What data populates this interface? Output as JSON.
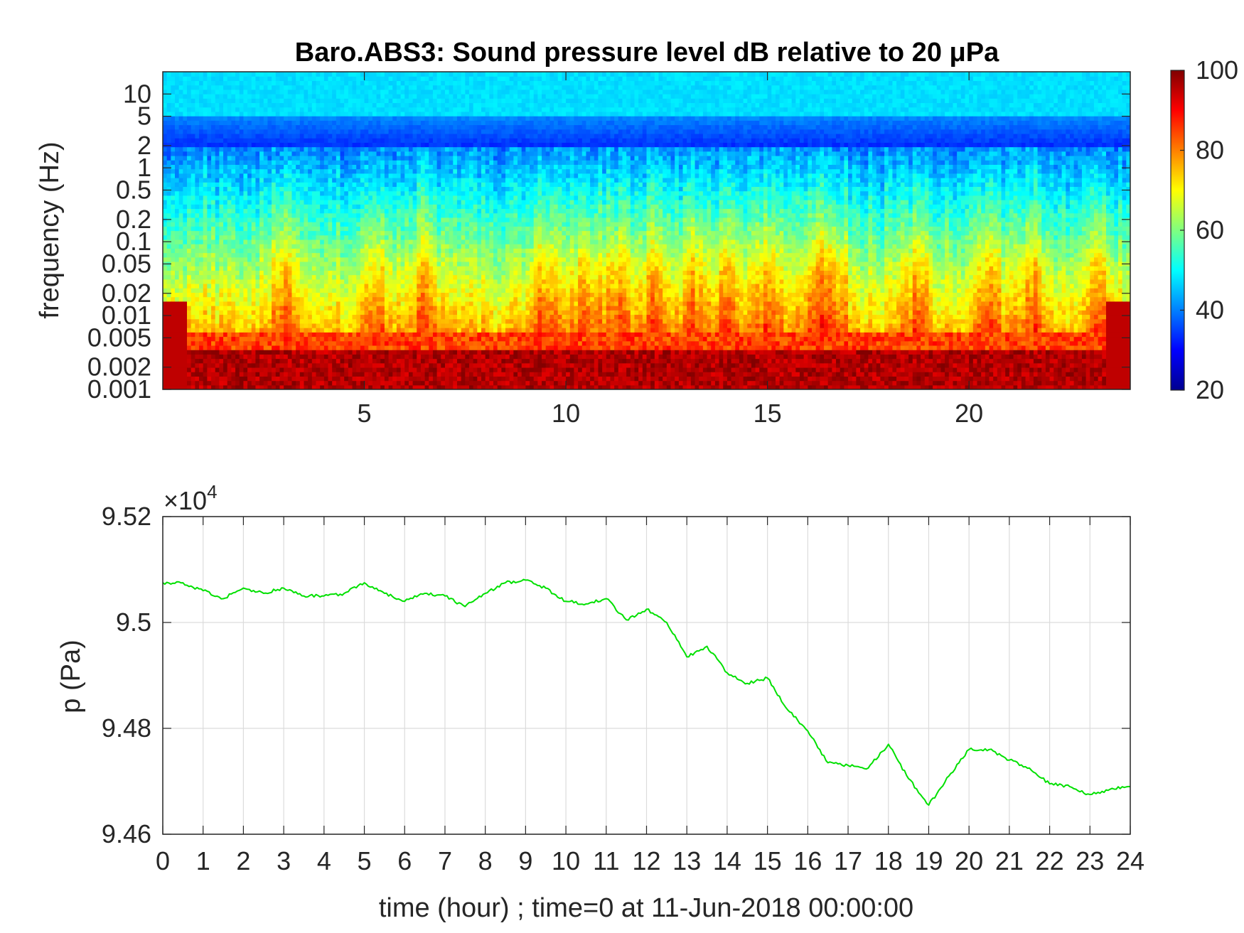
{
  "chart_data": [
    {
      "type": "heatmap",
      "title": "Baro.ABS3: Sound pressure level dB relative to 20 μPa",
      "ylabel": "frequency (Hz)",
      "xlabel": "",
      "x_ticks": [
        "5",
        "10",
        "15",
        "20"
      ],
      "x_tick_values": [
        5,
        10,
        15,
        20
      ],
      "xlim": [
        0,
        24
      ],
      "y_scale": "log",
      "y_ticks": [
        "0.001",
        "0.002",
        "0.005",
        "0.01",
        "0.02",
        "0.05",
        "0.1",
        "0.2",
        "0.5",
        "1",
        "2",
        "5",
        "10"
      ],
      "y_tick_values": [
        0.001,
        0.002,
        0.005,
        0.01,
        0.02,
        0.05,
        0.1,
        0.2,
        0.5,
        1,
        2,
        5,
        10
      ],
      "ylim": [
        0.001,
        20
      ],
      "colorbar": {
        "colormap": "jet",
        "range": [
          20,
          100
        ],
        "ticks": [
          "20",
          "40",
          "60",
          "80",
          "100"
        ],
        "tick_values": [
          20,
          40,
          60,
          80,
          100
        ]
      },
      "description_levels": {
        "low_freq_band_db": 90,
        "mid_freq_db": 65,
        "high_freq_db": 40
      }
    },
    {
      "type": "line",
      "ylabel": "p (Pa)",
      "xlabel": "time (hour) ; time=0 at 11-Jun-2018 00:00:00",
      "y_multiplier": "×10",
      "y_multiplier_exp": "4",
      "x_ticks": [
        "0",
        "1",
        "2",
        "3",
        "4",
        "5",
        "6",
        "7",
        "8",
        "9",
        "10",
        "11",
        "12",
        "13",
        "14",
        "15",
        "16",
        "17",
        "18",
        "19",
        "20",
        "21",
        "22",
        "23",
        "24"
      ],
      "y_ticks": [
        "9.46",
        "9.48",
        "9.5",
        "9.52"
      ],
      "y_tick_values": [
        9.46,
        9.48,
        9.5,
        9.52
      ],
      "xlim": [
        0,
        24
      ],
      "ylim": [
        9.46,
        9.52
      ],
      "grid": true,
      "series": [
        {
          "color": "#00e000",
          "x": [
            0,
            0.5,
            1,
            1.5,
            2,
            2.5,
            3,
            3.5,
            4,
            4.5,
            5,
            5.5,
            6,
            6.5,
            7,
            7.5,
            8,
            8.5,
            9,
            9.5,
            10,
            10.5,
            11,
            11.5,
            12,
            12.5,
            13,
            13.5,
            14,
            14.5,
            15,
            15.5,
            16,
            16.5,
            17,
            17.5,
            18,
            18.5,
            19,
            19.5,
            20,
            20.5,
            21,
            21.5,
            22,
            22.5,
            23,
            23.5,
            24
          ],
          "y": [
            9.5075,
            9.5075,
            9.506,
            9.5045,
            9.5065,
            9.5055,
            9.5065,
            9.505,
            9.505,
            9.5055,
            9.5075,
            9.5055,
            9.504,
            9.5055,
            9.505,
            9.503,
            9.5055,
            9.5075,
            9.508,
            9.5065,
            9.504,
            9.5035,
            9.5045,
            9.5005,
            9.5025,
            9.5,
            9.4935,
            9.4955,
            9.4905,
            9.4885,
            9.4895,
            9.4835,
            9.4795,
            9.4735,
            9.473,
            9.4725,
            9.477,
            9.4705,
            9.4655,
            9.471,
            9.476,
            9.476,
            9.474,
            9.4725,
            9.4695,
            9.469,
            9.4675,
            9.4685,
            9.469
          ]
        }
      ]
    }
  ]
}
